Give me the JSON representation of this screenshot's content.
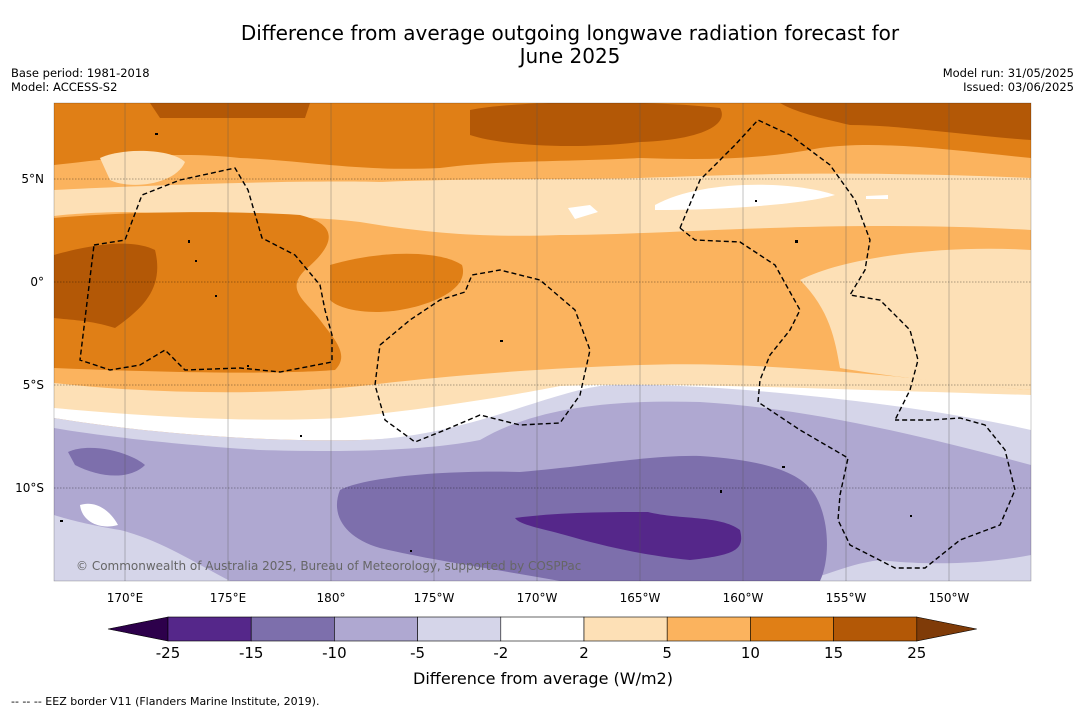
{
  "title_line1": "Difference from average outgoing longwave radiation forecast for",
  "title_line2": "June 2025",
  "base_period": "Base period: 1981-2018",
  "model": "Model: ACCESS-S2",
  "model_run": "Model run: 31/05/2025",
  "issued": "Issued: 03/06/2025",
  "lat_labels": [
    "5°N",
    "0°",
    "5°S",
    "10°S"
  ],
  "lon_labels": [
    "170°E",
    "175°E",
    "180°",
    "175°W",
    "170°W",
    "165°W",
    "160°W",
    "155°W",
    "150°W"
  ],
  "copyright": "© Commonwealth of Australia 2025, Bureau of Meteorology, supported by COSPPac",
  "colorbar": {
    "ticks": [
      "-25",
      "-15",
      "-10",
      "-5",
      "-2",
      "2",
      "5",
      "10",
      "15",
      "25"
    ],
    "colors": [
      "#55278a",
      "#7d6fac",
      "#afa8d1",
      "#d5d5e9",
      "#ffffff",
      "#fde0b6",
      "#fbb35e",
      "#e07f16",
      "#b35806"
    ],
    "under_color": "#2d004b",
    "over_color": "#7f3b08",
    "label": "Difference from average (W/m2)"
  },
  "legend_eez": "-- -- -- EEZ border V11 (Flanders Marine Institute, 2019)."
}
